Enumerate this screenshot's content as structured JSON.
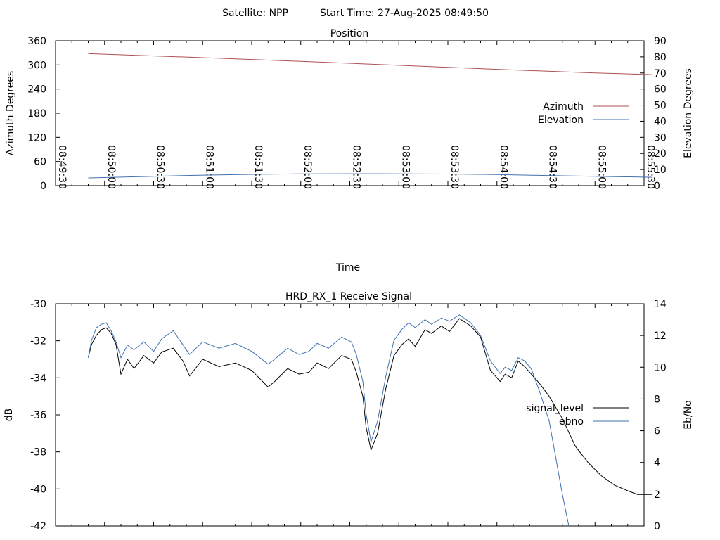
{
  "header": {
    "satellite_text": "Satellite: NPP",
    "start_time_text": "Start Time: 27-Aug-2025 08:49:50"
  },
  "chart_data": [
    {
      "type": "line",
      "title": "Position",
      "xlabel": "Time",
      "ylabel": "Azimuth Degrees",
      "y2label": "Elevation Degrees",
      "xlim": [
        "08:49:30",
        "08:55:30"
      ],
      "xticks": [
        "08:49:30",
        "08:50:00",
        "08:50:30",
        "08:51:00",
        "08:51:30",
        "08:52:00",
        "08:52:30",
        "08:53:00",
        "08:53:30",
        "08:54:00",
        "08:54:30",
        "08:55:00",
        "08:55:30"
      ],
      "ylim": [
        0,
        360
      ],
      "yticks": [
        0,
        60,
        120,
        180,
        240,
        300,
        360
      ],
      "y2lim": [
        0,
        90
      ],
      "y2ticks": [
        0,
        10,
        20,
        30,
        40,
        50,
        60,
        70,
        80,
        90
      ],
      "legend_position": "right",
      "series": [
        {
          "name": "Azimuth",
          "axis": "left",
          "color": "#b05050",
          "x": [
            "08:49:50",
            "08:51:00",
            "08:52:00",
            "08:53:00",
            "08:54:00",
            "08:55:00",
            "08:55:35"
          ],
          "y": [
            328,
            318,
            309,
            299,
            289,
            280,
            276
          ]
        },
        {
          "name": "Elevation",
          "axis": "right",
          "color": "#4070b0",
          "x": [
            "08:49:50",
            "08:50:30",
            "08:51:00",
            "08:51:30",
            "08:52:00",
            "08:52:30",
            "08:52:50",
            "08:53:30",
            "08:54:00",
            "08:54:30",
            "08:55:00",
            "08:55:35"
          ],
          "y": [
            4.8,
            5.8,
            6.5,
            7.0,
            7.3,
            7.4,
            7.4,
            7.2,
            6.9,
            6.3,
            5.8,
            5.2
          ]
        }
      ]
    },
    {
      "type": "line",
      "title": "HRD_RX_1 Receive Signal",
      "xlabel": "",
      "ylabel": "dB",
      "y2label": "Eb/No",
      "ylim": [
        -42,
        -30
      ],
      "yticks": [
        -42,
        -40,
        -38,
        -36,
        -34,
        -32,
        -30
      ],
      "y2lim": [
        0,
        14
      ],
      "y2ticks": [
        0,
        2,
        4,
        6,
        8,
        10,
        12,
        14
      ],
      "xlim": [
        "08:49:30",
        "08:55:30"
      ],
      "legend_position": "right",
      "series": [
        {
          "name": "signal_level",
          "axis": "left",
          "color": "#000000",
          "x": [
            "08:49:50",
            "08:49:52",
            "08:49:55",
            "08:49:58",
            "08:50:01",
            "08:50:04",
            "08:50:07",
            "08:50:10",
            "08:50:14",
            "08:50:18",
            "08:50:24",
            "08:50:30",
            "08:50:35",
            "08:50:42",
            "08:50:48",
            "08:50:52",
            "08:51:00",
            "08:51:10",
            "08:51:20",
            "08:51:30",
            "08:51:40",
            "08:51:44",
            "08:51:52",
            "08:51:59",
            "08:52:05",
            "08:52:10",
            "08:52:17",
            "08:52:25",
            "08:52:31",
            "08:52:34",
            "08:52:38",
            "08:52:40",
            "08:52:43",
            "08:52:47",
            "08:52:52",
            "08:52:57",
            "08:53:02",
            "08:53:06",
            "08:53:10",
            "08:53:16",
            "08:53:20",
            "08:53:26",
            "08:53:31",
            "08:53:37",
            "08:53:44",
            "08:53:50",
            "08:53:56",
            "08:54:02",
            "08:54:05",
            "08:54:09",
            "08:54:13",
            "08:54:17",
            "08:54:21",
            "08:54:26",
            "08:54:32",
            "08:54:40",
            "08:54:48",
            "08:54:56",
            "08:55:04",
            "08:55:12",
            "08:55:20",
            "08:55:26",
            "08:55:35"
          ],
          "y": [
            -32.9,
            -32.2,
            -31.7,
            -31.4,
            -31.3,
            -31.6,
            -32.2,
            -33.8,
            -33.0,
            -33.5,
            -32.8,
            -33.2,
            -32.6,
            -32.4,
            -33.1,
            -33.9,
            -33.0,
            -33.4,
            -33.2,
            -33.6,
            -34.5,
            -34.2,
            -33.5,
            -33.8,
            -33.7,
            -33.2,
            -33.5,
            -32.8,
            -33.0,
            -33.7,
            -35.0,
            -36.7,
            -37.9,
            -37.0,
            -34.6,
            -32.8,
            -32.2,
            -31.9,
            -32.3,
            -31.4,
            -31.6,
            -31.2,
            -31.5,
            -30.8,
            -31.2,
            -31.8,
            -33.6,
            -34.2,
            -33.8,
            -34.0,
            -33.1,
            -33.4,
            -33.8,
            -34.3,
            -35.0,
            -36.2,
            -37.7,
            -38.6,
            -39.3,
            -39.8,
            -40.1,
            -40.3,
            -40.3
          ]
        },
        {
          "name": "ebno",
          "axis": "right",
          "color": "#4070b0",
          "x": [
            "08:49:50",
            "08:49:52",
            "08:49:55",
            "08:49:58",
            "08:50:01",
            "08:50:04",
            "08:50:07",
            "08:50:10",
            "08:50:14",
            "08:50:18",
            "08:50:24",
            "08:50:30",
            "08:50:35",
            "08:50:42",
            "08:50:48",
            "08:50:52",
            "08:51:00",
            "08:51:10",
            "08:51:20",
            "08:51:30",
            "08:51:40",
            "08:51:44",
            "08:51:52",
            "08:51:59",
            "08:52:05",
            "08:52:10",
            "08:52:17",
            "08:52:25",
            "08:52:31",
            "08:52:34",
            "08:52:38",
            "08:52:40",
            "08:52:43",
            "08:52:47",
            "08:52:52",
            "08:52:57",
            "08:53:02",
            "08:53:06",
            "08:53:10",
            "08:53:16",
            "08:53:20",
            "08:53:26",
            "08:53:31",
            "08:53:37",
            "08:53:44",
            "08:53:50",
            "08:53:56",
            "08:54:02",
            "08:54:05",
            "08:54:09",
            "08:54:13",
            "08:54:17",
            "08:54:21",
            "08:54:26",
            "08:54:32",
            "08:54:40",
            "08:54:44"
          ],
          "y": [
            10.6,
            11.7,
            12.5,
            12.7,
            12.8,
            12.3,
            11.6,
            10.6,
            11.4,
            11.1,
            11.6,
            11.0,
            11.8,
            12.3,
            11.4,
            10.8,
            11.6,
            11.2,
            11.5,
            11.0,
            10.2,
            10.5,
            11.2,
            10.8,
            11.0,
            11.5,
            11.2,
            11.9,
            11.6,
            10.8,
            9.1,
            7.0,
            5.3,
            6.6,
            9.4,
            11.7,
            12.4,
            12.8,
            12.5,
            13.0,
            12.7,
            13.1,
            12.9,
            13.3,
            12.8,
            12.0,
            10.4,
            9.6,
            10.0,
            9.8,
            10.6,
            10.4,
            9.9,
            8.5,
            6.6,
            2.0,
            0.0
          ]
        }
      ]
    }
  ]
}
